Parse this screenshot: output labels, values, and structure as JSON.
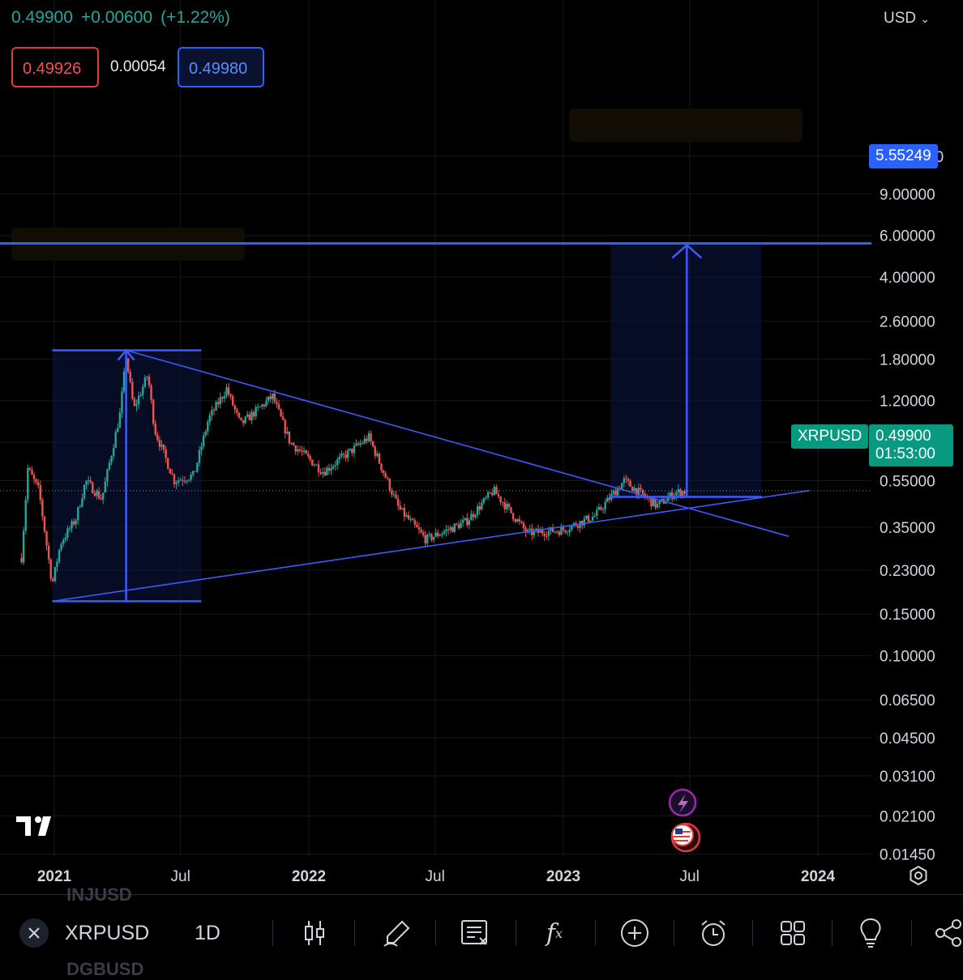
{
  "header": {
    "last_price": "0.49900",
    "change": "+0.00600",
    "change_pct": "(+1.22%)",
    "bid": "0.49926",
    "spread": "0.00054",
    "ask": "0.49980"
  },
  "currency_selector": "USD",
  "price_axis": {
    "ticks": [
      "13.00000",
      "9.00000",
      "6.00000",
      "4.00000",
      "2.60000",
      "1.80000",
      "1.20000",
      "0.80000",
      "0.55000",
      "0.35000",
      "0.23000",
      "0.15000",
      "0.10000",
      "0.06500",
      "0.04500",
      "0.03100",
      "0.02100",
      "0.01450"
    ],
    "scale": "log"
  },
  "time_axis": {
    "ticks": [
      "2021",
      "Jul",
      "2022",
      "Jul",
      "2023",
      "Jul",
      "2024"
    ]
  },
  "price_tags": {
    "target": "5.55249",
    "symbol": "XRPUSD",
    "current": "0.49900",
    "countdown": "01:53:00"
  },
  "colors": {
    "up": "#26a69a",
    "down": "#ef5350",
    "drawing": "#3d5afe",
    "target_line": "#2962ff",
    "current_tag": "#089981"
  },
  "icons": {
    "logo": "tradingview-logo-icon",
    "settings": "gear-icon",
    "event_flash": "lightning-icon",
    "event_us": "us-flag-icon"
  },
  "toolbar": {
    "symbol": "XRPUSD",
    "interval": "1D",
    "ghost_above": "INJUSD",
    "ghost_below": "DGBUSD",
    "tools": [
      "close-icon",
      "candles-icon",
      "brush-icon",
      "objects-tree-icon",
      "indicators-icon",
      "add-icon",
      "alert-icon",
      "layouts-icon",
      "ideas-icon",
      "share-icon"
    ]
  },
  "chart_data": {
    "type": "candlestick",
    "symbol": "XRPUSD",
    "interval": "1D",
    "y_scale": "log",
    "ylim": [
      0.0145,
      13.0
    ],
    "xlim": [
      "2020-11-15",
      "2024-03-15"
    ],
    "grid": true,
    "series_close_approx": [
      {
        "date": "2020-11-15",
        "close": 0.26
      },
      {
        "date": "2020-11-24",
        "close": 0.62
      },
      {
        "date": "2020-12-10",
        "close": 0.5
      },
      {
        "date": "2020-12-29",
        "close": 0.2
      },
      {
        "date": "2021-01-10",
        "close": 0.3
      },
      {
        "date": "2021-02-01",
        "close": 0.38
      },
      {
        "date": "2021-02-15",
        "close": 0.55
      },
      {
        "date": "2021-03-10",
        "close": 0.46
      },
      {
        "date": "2021-04-05",
        "close": 1.05
      },
      {
        "date": "2021-04-14",
        "close": 1.85
      },
      {
        "date": "2021-04-25",
        "close": 1.1
      },
      {
        "date": "2021-05-15",
        "close": 1.55
      },
      {
        "date": "2021-05-25",
        "close": 0.9
      },
      {
        "date": "2021-06-22",
        "close": 0.55
      },
      {
        "date": "2021-07-20",
        "close": 0.58
      },
      {
        "date": "2021-08-10",
        "close": 1.0
      },
      {
        "date": "2021-09-05",
        "close": 1.35
      },
      {
        "date": "2021-09-25",
        "close": 0.95
      },
      {
        "date": "2021-11-10",
        "close": 1.25
      },
      {
        "date": "2021-12-05",
        "close": 0.8
      },
      {
        "date": "2022-01-22",
        "close": 0.6
      },
      {
        "date": "2022-03-28",
        "close": 0.84
      },
      {
        "date": "2022-05-10",
        "close": 0.42
      },
      {
        "date": "2022-06-18",
        "close": 0.31
      },
      {
        "date": "2022-08-15",
        "close": 0.37
      },
      {
        "date": "2022-09-23",
        "close": 0.5
      },
      {
        "date": "2022-11-10",
        "close": 0.33
      },
      {
        "date": "2022-12-30",
        "close": 0.34
      },
      {
        "date": "2023-02-15",
        "close": 0.39
      },
      {
        "date": "2023-03-29",
        "close": 0.55
      },
      {
        "date": "2023-05-15",
        "close": 0.43
      },
      {
        "date": "2023-06-10",
        "close": 0.49
      },
      {
        "date": "2023-06-27",
        "close": 0.499
      }
    ],
    "drawings": {
      "descending_trendline": [
        {
          "date": "2021-04-14",
          "price": 1.96
        },
        {
          "date": "2023-11-20",
          "price": 0.32
        }
      ],
      "ascending_trendline": [
        {
          "date": "2020-12-29",
          "price": 0.17
        },
        {
          "date": "2023-12-20",
          "price": 0.5
        }
      ],
      "measure_1": {
        "from": {
          "date": "2020-12-29",
          "price": 0.17
        },
        "to": {
          "date": "2021-04-14",
          "price": 1.96
        }
      },
      "measure_2": {
        "from": {
          "date": "2023-06-27",
          "price": 0.47
        },
        "to": {
          "date": "2023-06-27",
          "price": 5.55249
        }
      },
      "target_level": 5.55249,
      "current_price": 0.499
    }
  }
}
